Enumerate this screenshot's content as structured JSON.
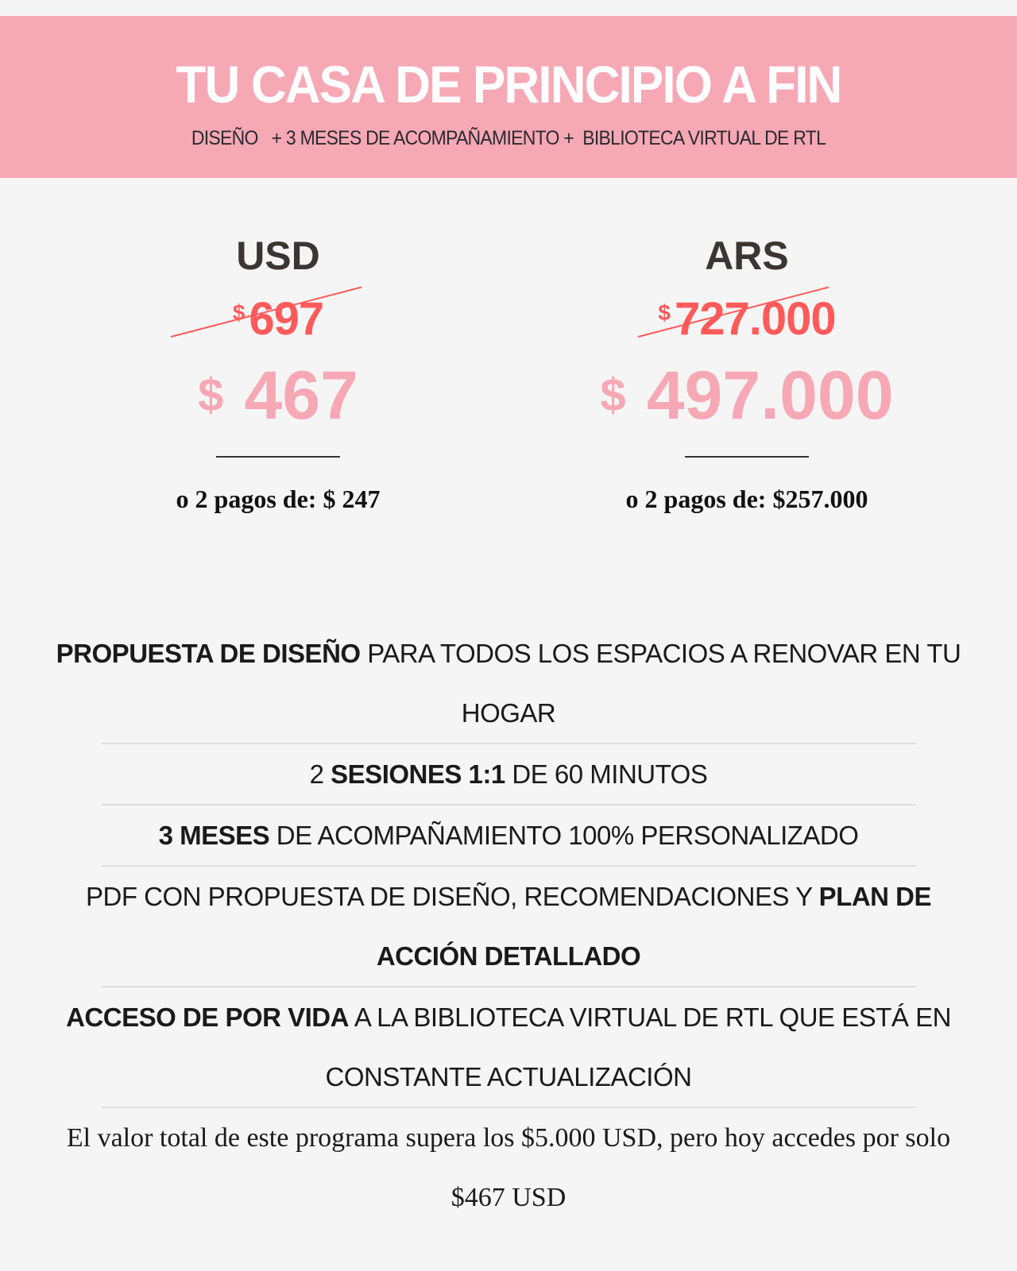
{
  "banner": {
    "title": "TU CASA DE PRINCIPIO A FIN",
    "subtitle": "DISEÑO   + 3 MESES DE ACOMPAÑAMIENTO +  BIBLIOTECA VIRTUAL DE RTL"
  },
  "colors": {
    "banner": "#f7a8b5",
    "old_price": "#ff5a5a",
    "new_price": "#f7a8b5",
    "heading": "#3d3533",
    "background": "#f5f5f5"
  },
  "pricing": [
    {
      "currency": "USD",
      "old_symbol": "$",
      "old_price": "697",
      "new_symbol": "$",
      "new_price": "467",
      "installments": "o 2 pagos de: $ 247"
    },
    {
      "currency": "ARS",
      "old_symbol": "$",
      "old_price": "727.000",
      "new_symbol": "$",
      "new_price": "497.000",
      "installments": "o 2 pagos de: $257.000"
    }
  ],
  "features": [
    {
      "bold": "PROPUESTA DE DISEÑO",
      "text": " PARA TODOS LOS ESPACIOS A RENOVAR EN TU HOGAR"
    },
    {
      "pre": "2 ",
      "bold": "SESIONES 1:1",
      "text": " DE 60 MINUTOS"
    },
    {
      "bold": "3 MESES",
      "text": " DE ACOMPAÑAMIENTO 100% PERSONALIZADO"
    },
    {
      "text": "PDF CON PROPUESTA DE DISEÑO, RECOMENDACIONES Y ",
      "bold": "PLAN DE ACCIÓN DETALLADO"
    },
    {
      "bold": "ACCESO DE POR VIDA",
      "text": " A LA BIBLIOTECA VIRTUAL DE RTL QUE ESTÁ EN CONSTANTE ACTUALIZACIÓN"
    }
  ],
  "note": "El valor total de este programa supera los $5.000 USD, pero hoy accedes por solo $467 USD"
}
